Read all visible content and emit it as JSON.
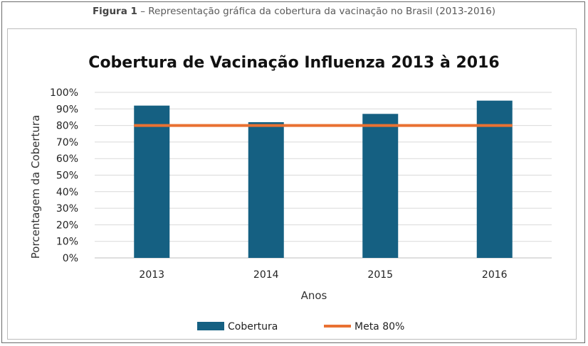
{
  "caption": {
    "label": "Figura 1",
    "text": " – Representação gráfica da cobertura da vacinação no Brasil (2013-2016)"
  },
  "chart_data": {
    "type": "bar",
    "title": "Cobertura de Vacinação Influenza 2013 à 2016",
    "xlabel": "Anos",
    "ylabel": "Porcentagem da Cobertura",
    "categories": [
      "2013",
      "2014",
      "2015",
      "2016"
    ],
    "ylim": [
      0,
      100
    ],
    "yticks": [
      "0%",
      "10%",
      "20%",
      "30%",
      "40%",
      "50%",
      "60%",
      "70%",
      "80%",
      "90%",
      "100%"
    ],
    "grid": true,
    "legend_position": "bottom",
    "series": [
      {
        "name": "Cobertura",
        "type": "bar",
        "values": [
          92,
          82,
          87,
          95
        ],
        "color": "#156082"
      },
      {
        "name": "Meta 80%",
        "type": "line",
        "values": [
          80,
          80,
          80,
          80
        ],
        "color": "#e97132"
      }
    ]
  }
}
